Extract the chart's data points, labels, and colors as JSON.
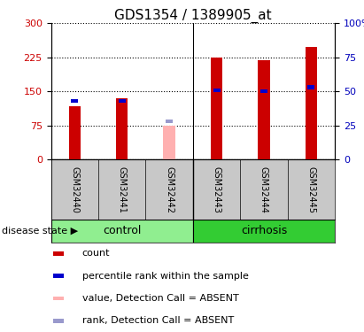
{
  "title": "GDS1354 / 1389905_at",
  "samples": [
    "GSM32440",
    "GSM32441",
    "GSM32442",
    "GSM32443",
    "GSM32444",
    "GSM32445"
  ],
  "red_values": [
    118,
    135,
    null,
    225,
    218,
    248
  ],
  "pink_values": [
    null,
    null,
    75,
    null,
    null,
    null
  ],
  "blue_values": [
    43,
    43,
    null,
    51,
    50,
    53
  ],
  "light_blue_values": [
    null,
    null,
    28,
    null,
    null,
    null
  ],
  "groups": [
    {
      "label": "control",
      "start": 0,
      "end": 3,
      "color": "#90EE90"
    },
    {
      "label": "cirrhosis",
      "start": 3,
      "end": 6,
      "color": "#33CC33"
    }
  ],
  "ylim_left": [
    0,
    300
  ],
  "ylim_right": [
    0,
    100
  ],
  "yticks_left": [
    0,
    75,
    150,
    225,
    300
  ],
  "yticks_right": [
    0,
    25,
    50,
    75,
    100
  ],
  "ylabel_left_color": "#CC0000",
  "ylabel_right_color": "#0000BB",
  "red_color": "#CC0000",
  "pink_color": "#FFB0B0",
  "blue_color": "#0000CC",
  "light_blue_color": "#9999CC",
  "grid_color": "#000000",
  "bg_color": "#FFFFFF",
  "plot_bg_color": "#FFFFFF",
  "label_area_color": "#C8C8C8",
  "legend_items": [
    {
      "label": "count",
      "color": "#CC0000"
    },
    {
      "label": "percentile rank within the sample",
      "color": "#0000CC"
    },
    {
      "label": "value, Detection Call = ABSENT",
      "color": "#FFB0B0"
    },
    {
      "label": "rank, Detection Call = ABSENT",
      "color": "#9999CC"
    }
  ],
  "disease_state_label": "disease state ▶",
  "title_fontsize": 11,
  "tick_fontsize": 8,
  "label_fontsize": 7,
  "legend_fontsize": 8,
  "group_fontsize": 9
}
